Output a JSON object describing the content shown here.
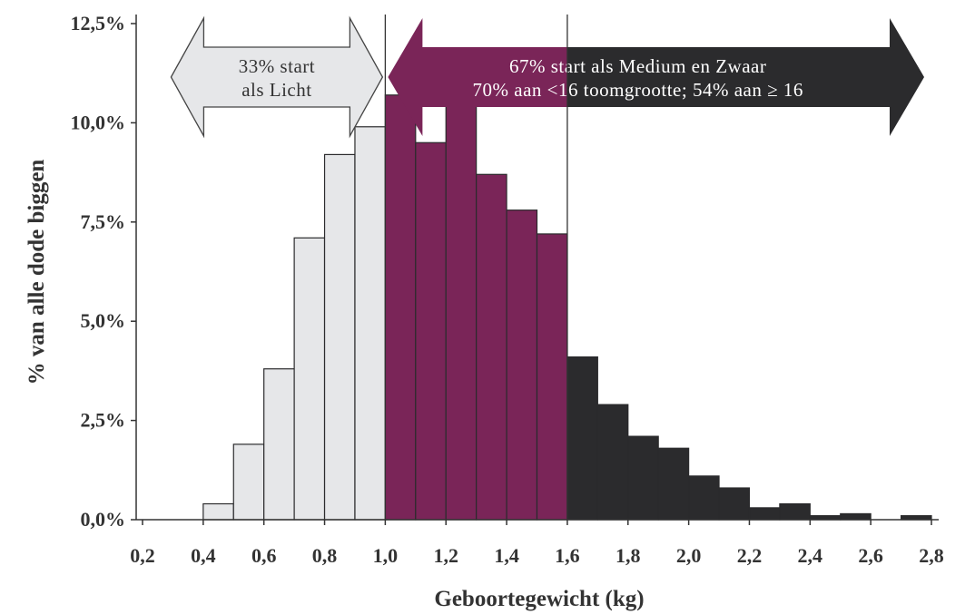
{
  "chart_data": {
    "type": "bar",
    "title": "",
    "xlabel": "Geboortegewicht (kg)",
    "ylabel": "% van alle dode biggen",
    "xlim": [
      0.2,
      2.8
    ],
    "ylim": [
      0,
      12.5
    ],
    "bin_width": 0.1,
    "x_ticks": [
      "0,2",
      "0,4",
      "0,6",
      "0,8",
      "1,0",
      "1,2",
      "1,4",
      "1,6",
      "1,8",
      "2,0",
      "2,2",
      "2,4",
      "2,6",
      "2,8"
    ],
    "x_tick_values": [
      0.2,
      0.4,
      0.6,
      0.8,
      1.0,
      1.2,
      1.4,
      1.6,
      1.8,
      2.0,
      2.2,
      2.4,
      2.6,
      2.8
    ],
    "y_ticks": [
      "0,0%",
      "2,5%",
      "5,0%",
      "7,5%",
      "10,0%",
      "12,5%"
    ],
    "y_tick_values": [
      0,
      2.5,
      5.0,
      7.5,
      10.0,
      12.5
    ],
    "bins": [
      {
        "x": 0.4,
        "value": 0.4,
        "group": "light"
      },
      {
        "x": 0.5,
        "value": 1.9,
        "group": "light"
      },
      {
        "x": 0.6,
        "value": 3.8,
        "group": "light"
      },
      {
        "x": 0.7,
        "value": 7.1,
        "group": "light"
      },
      {
        "x": 0.8,
        "value": 9.2,
        "group": "light"
      },
      {
        "x": 0.9,
        "value": 9.9,
        "group": "light"
      },
      {
        "x": 1.0,
        "value": 10.7,
        "group": "medium"
      },
      {
        "x": 1.1,
        "value": 9.5,
        "group": "medium"
      },
      {
        "x": 1.2,
        "value": 10.6,
        "group": "medium"
      },
      {
        "x": 1.3,
        "value": 8.7,
        "group": "medium"
      },
      {
        "x": 1.4,
        "value": 7.8,
        "group": "medium"
      },
      {
        "x": 1.5,
        "value": 7.2,
        "group": "medium"
      },
      {
        "x": 1.6,
        "value": 4.1,
        "group": "heavy"
      },
      {
        "x": 1.7,
        "value": 2.9,
        "group": "heavy"
      },
      {
        "x": 1.8,
        "value": 2.1,
        "group": "heavy"
      },
      {
        "x": 1.9,
        "value": 1.8,
        "group": "heavy"
      },
      {
        "x": 2.0,
        "value": 1.1,
        "group": "heavy"
      },
      {
        "x": 2.1,
        "value": 0.8,
        "group": "heavy"
      },
      {
        "x": 2.2,
        "value": 0.3,
        "group": "heavy"
      },
      {
        "x": 2.3,
        "value": 0.4,
        "group": "heavy"
      },
      {
        "x": 2.4,
        "value": 0.1,
        "group": "heavy"
      },
      {
        "x": 2.5,
        "value": 0.15,
        "group": "heavy"
      },
      {
        "x": 2.7,
        "value": 0.1,
        "group": "heavy"
      }
    ],
    "colors": {
      "light": "#e6e7e9",
      "medium": "#7a2558",
      "heavy": "#2b2b2d"
    },
    "dividers": [
      1.0,
      1.6
    ],
    "annotations": {
      "light": {
        "line1": "33% start",
        "line2": "als Licht",
        "text_color": "#333333",
        "fill": "#e6e7e9",
        "from": 0.3,
        "to": 1.0
      },
      "medium_heavy": {
        "line1": "67% start als Medium en Zwaar",
        "line2": "70% aan <16 toomgrootte; 54% aan ≥ 16",
        "text_color": "#ffffff",
        "fill_left": "#7a2558",
        "fill_right": "#2b2b2d",
        "from": 1.0,
        "to": 2.8,
        "split": 1.6
      }
    }
  }
}
